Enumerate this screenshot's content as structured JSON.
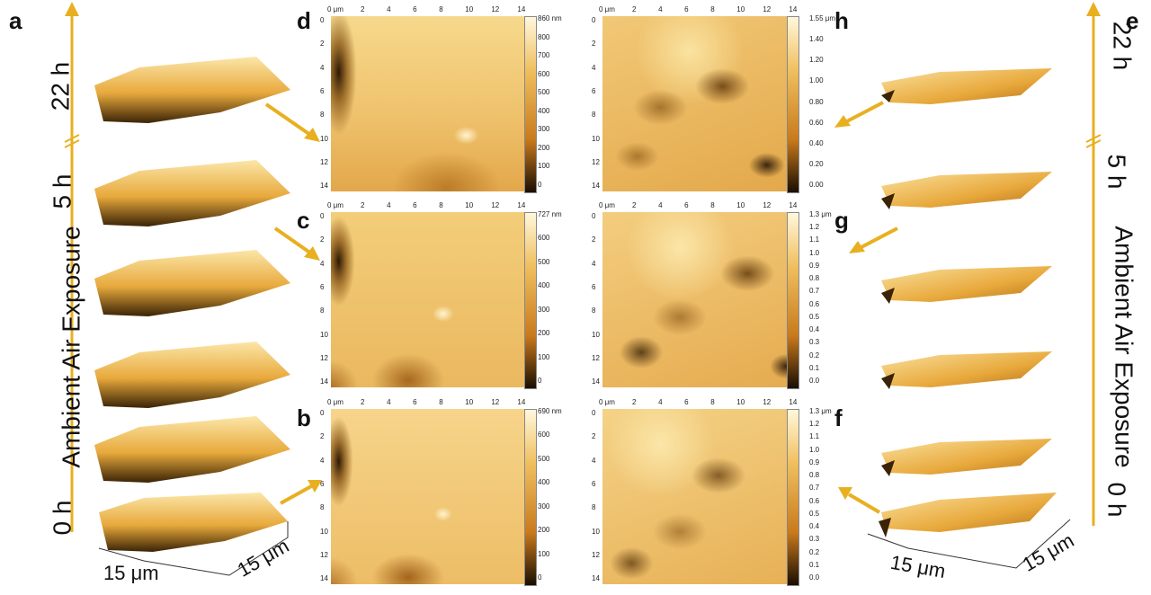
{
  "panels": {
    "a": "a",
    "b": "b",
    "c": "c",
    "d": "d",
    "e": "e",
    "f": "f",
    "g": "g",
    "h": "h"
  },
  "left_column": {
    "time_top": "22 h",
    "time_mid": "5 h",
    "time_bottom": "0 h",
    "exposure_label": "Ambient Air Exposure",
    "axis_x": "15 μm",
    "axis_y": "15 μm"
  },
  "right_column": {
    "time_top": "22 h",
    "time_mid": "5 h",
    "time_bottom": "0 h",
    "exposure_label": "Ambient Air Exposure",
    "axis_x": "15 μm",
    "axis_y": "15 μm"
  },
  "x_ticks": [
    "0 μm",
    "2",
    "4",
    "6",
    "8",
    "10",
    "12",
    "14"
  ],
  "y_ticks": [
    "0",
    "2",
    "4",
    "6",
    "8",
    "10",
    "12",
    "14"
  ],
  "colorbars": {
    "d": [
      "860 nm",
      "800",
      "700",
      "600",
      "500",
      "400",
      "300",
      "200",
      "100",
      "0"
    ],
    "c": [
      "727 nm",
      "600",
      "500",
      "400",
      "300",
      "200",
      "100",
      "0"
    ],
    "b": [
      "690 nm",
      "600",
      "500",
      "400",
      "300",
      "200",
      "100",
      "0"
    ],
    "h": [
      "1.55 μm",
      "1.40",
      "1.20",
      "1.00",
      "0.80",
      "0.60",
      "0.40",
      "0.20",
      "0.00"
    ],
    "g": [
      "1.3 μm",
      "1.2",
      "1.1",
      "1.0",
      "0.9",
      "0.8",
      "0.7",
      "0.6",
      "0.5",
      "0.4",
      "0.3",
      "0.2",
      "0.1",
      "0.0"
    ],
    "f": [
      "1.3 μm",
      "1.2",
      "1.1",
      "1.0",
      "0.9",
      "0.8",
      "0.7",
      "0.6",
      "0.5",
      "0.4",
      "0.3",
      "0.2",
      "0.1",
      "0.0"
    ]
  },
  "colors": {
    "arrow": "#e8b020",
    "afm_light": "#fbe6a8",
    "afm_mid": "#e8a93c",
    "afm_dark": "#3a2306"
  }
}
